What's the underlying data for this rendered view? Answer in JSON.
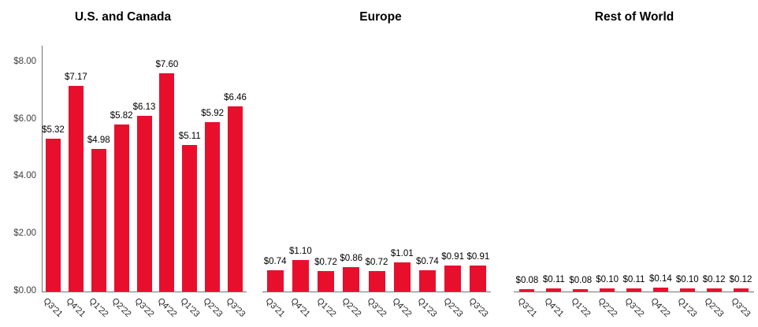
{
  "page": {
    "background_color": "#ffffff",
    "accent_color": "#E80F2D"
  },
  "chart_data": [
    {
      "type": "bar",
      "title": "U.S. and Canada",
      "categories": [
        "Q3'21",
        "Q4'21",
        "Q1'22",
        "Q2'22",
        "Q3'22",
        "Q4'22",
        "Q1'23",
        "Q2'23",
        "Q3'23"
      ],
      "values": [
        5.32,
        7.17,
        4.98,
        5.82,
        6.13,
        7.6,
        5.11,
        5.92,
        6.46
      ],
      "data_labels": [
        "$5.32",
        "$7.17",
        "$4.98",
        "$5.82",
        "$6.13",
        "$7.60",
        "$5.11",
        "$5.92",
        "$6.46"
      ],
      "xlabel": "",
      "ylabel": "",
      "ylim": [
        0,
        8.6
      ],
      "y_axis": {
        "visible": true,
        "tick_labels": [
          "$0.00",
          "$2.00",
          "$4.00",
          "$6.00",
          "$8.00"
        ],
        "tick_values": [
          0,
          2,
          4,
          6,
          8
        ]
      },
      "grid": false,
      "legend_position": "none",
      "bar_color": "#E80F2D",
      "data_label_color": "#000000"
    },
    {
      "type": "bar",
      "title": "Europe",
      "categories": [
        "Q3'21",
        "Q4'21",
        "Q1'22",
        "Q2'22",
        "Q3'22",
        "Q4'22",
        "Q1'23",
        "Q2'23",
        "Q3'23"
      ],
      "values": [
        0.74,
        1.1,
        0.72,
        0.86,
        0.72,
        1.01,
        0.74,
        0.91,
        0.91
      ],
      "data_labels": [
        "$0.74",
        "$1.10",
        "$0.72",
        "$0.86",
        "$0.72",
        "$1.01",
        "$0.74",
        "$0.91",
        "$0.91"
      ],
      "xlabel": "",
      "ylabel": "",
      "ylim": [
        0,
        8.6
      ],
      "y_axis": {
        "visible": false,
        "tick_labels": [],
        "tick_values": []
      },
      "grid": false,
      "legend_position": "none",
      "bar_color": "#E80F2D",
      "data_label_color": "#000000"
    },
    {
      "type": "bar",
      "title": "Rest of World",
      "categories": [
        "Q3'21",
        "Q4'21",
        "Q1'22",
        "Q2'22",
        "Q3'22",
        "Q4'22",
        "Q1'23",
        "Q2'23",
        "Q3'23"
      ],
      "values": [
        0.08,
        0.11,
        0.08,
        0.1,
        0.11,
        0.14,
        0.1,
        0.12,
        0.12
      ],
      "data_labels": [
        "$0.08",
        "$0.11",
        "$0.08",
        "$0.10",
        "$0.11",
        "$0.14",
        "$0.10",
        "$0.12",
        "$0.12"
      ],
      "xlabel": "",
      "ylabel": "",
      "ylim": [
        0,
        8.6
      ],
      "y_axis": {
        "visible": false,
        "tick_labels": [],
        "tick_values": []
      },
      "grid": false,
      "legend_position": "none",
      "bar_color": "#E80F2D",
      "data_label_color": "#000000"
    }
  ]
}
